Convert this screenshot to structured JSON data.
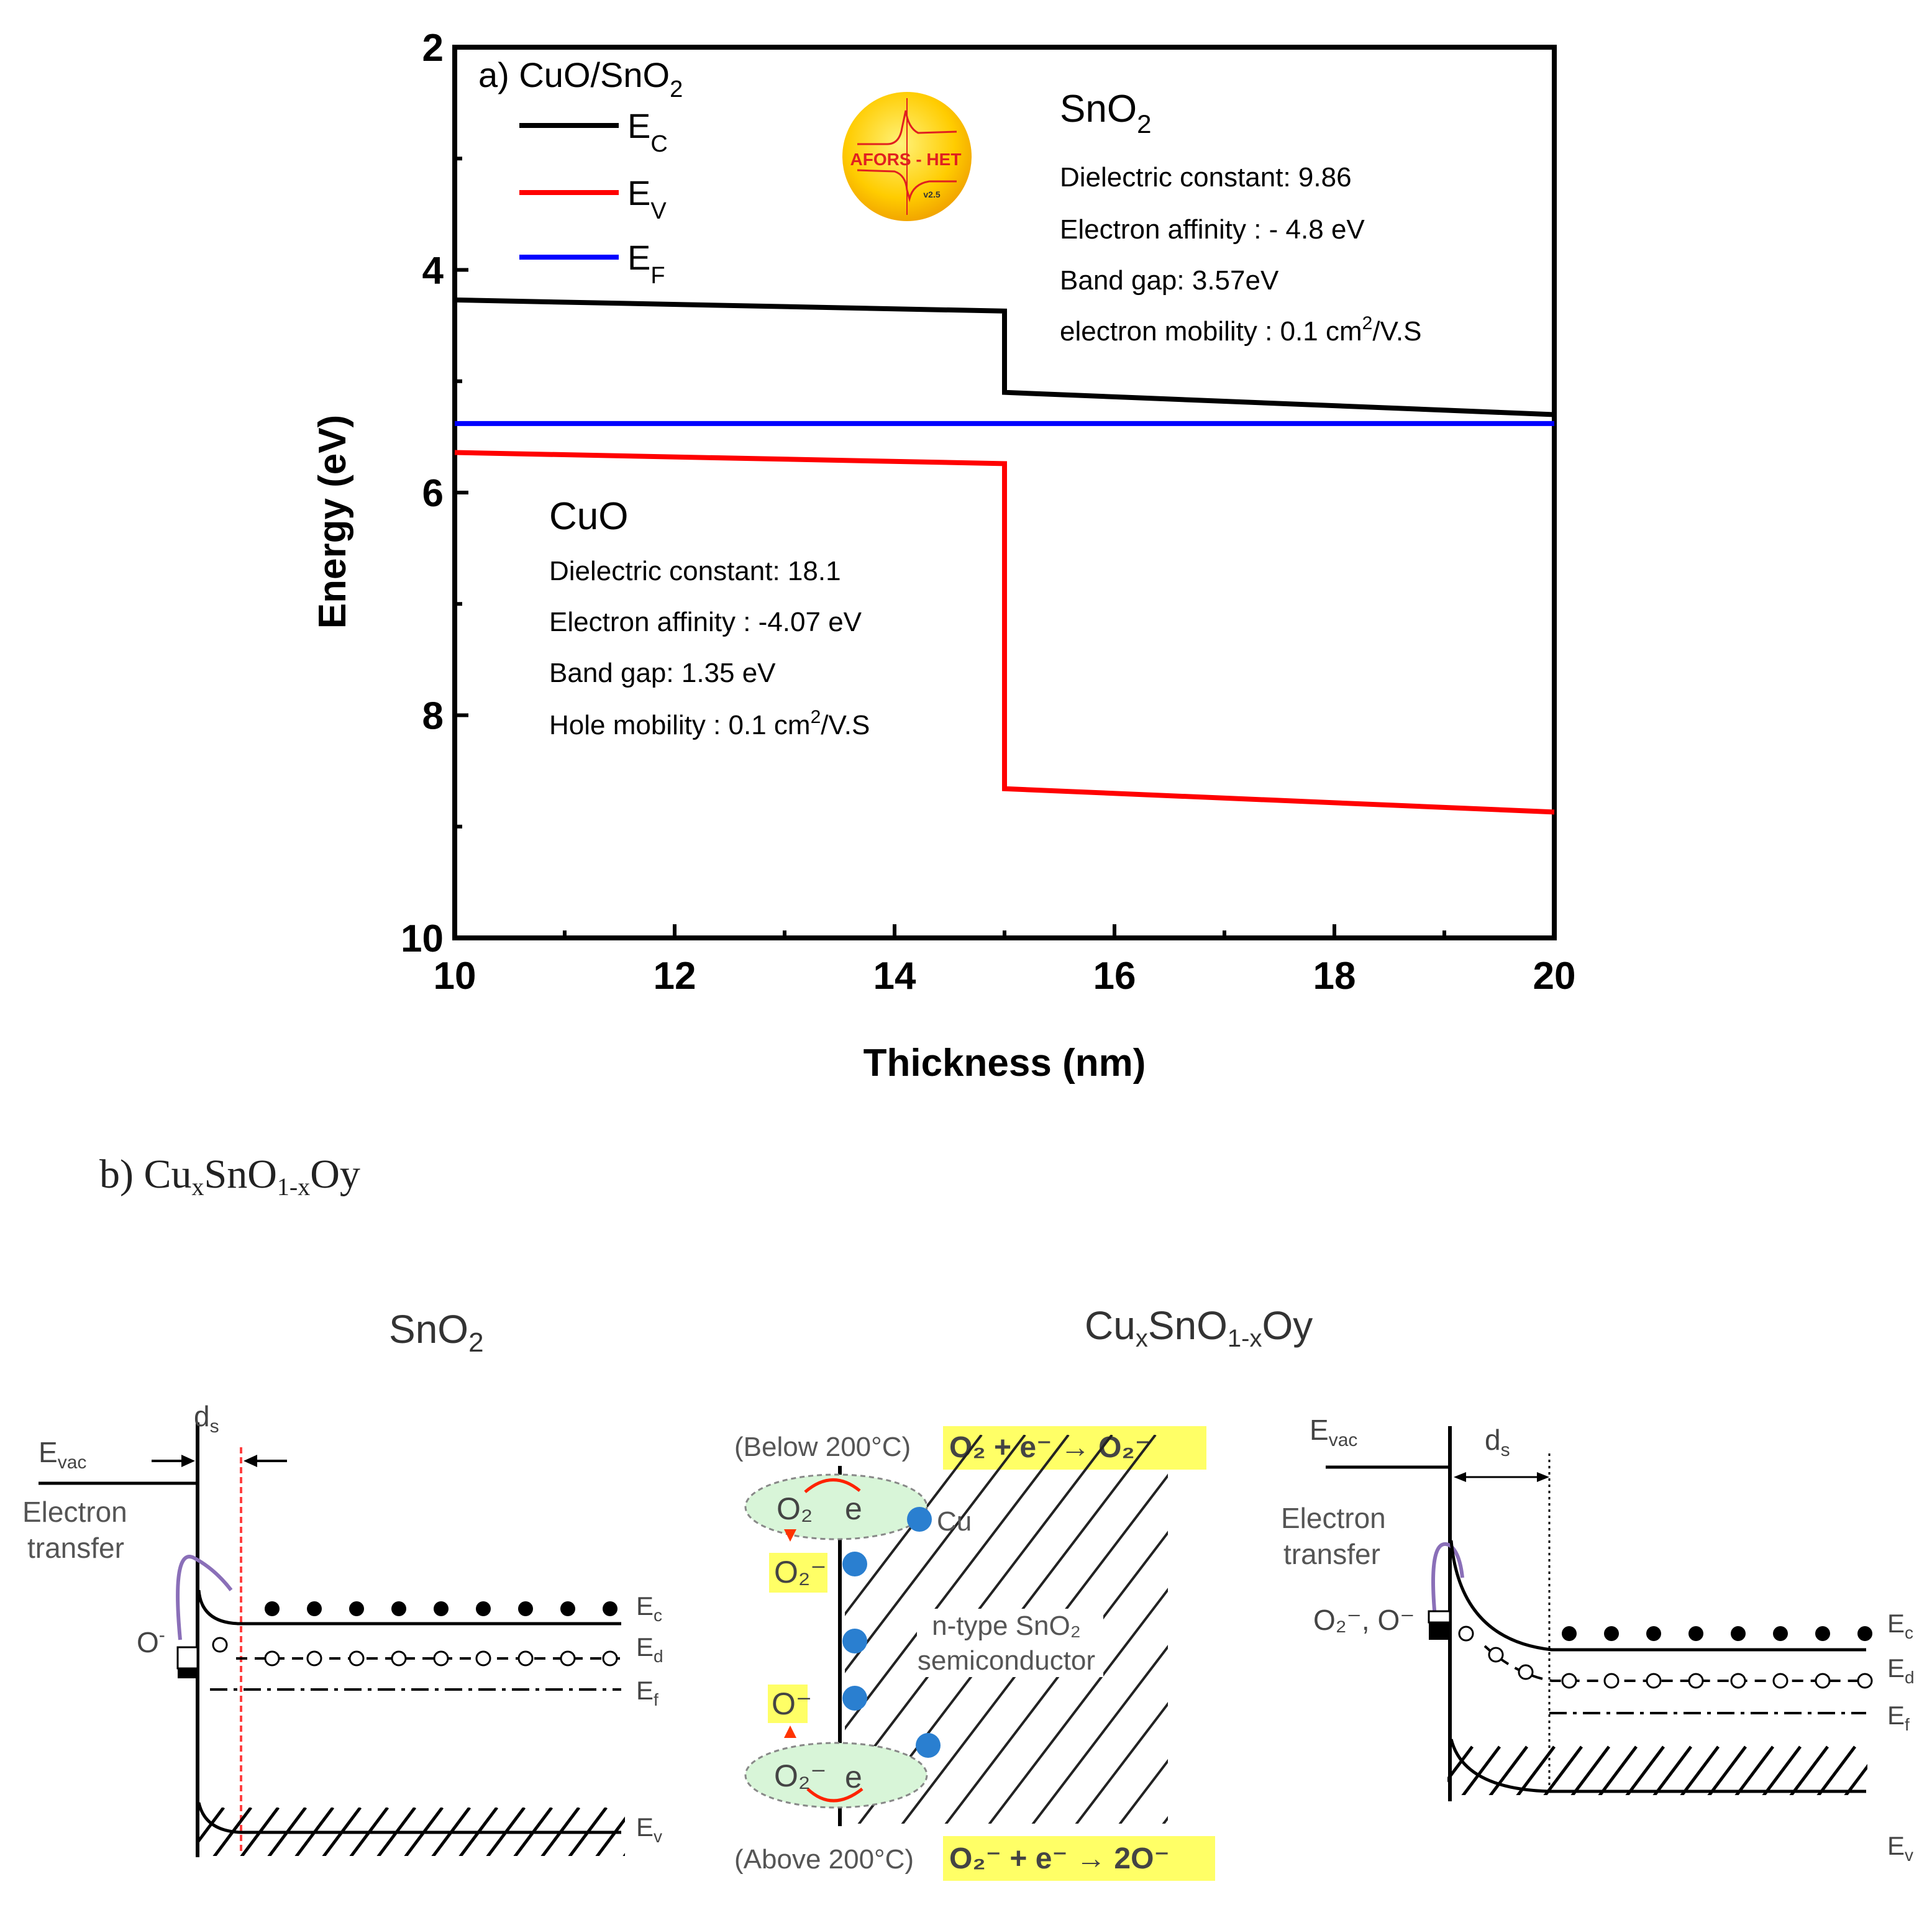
{
  "chart_data": {
    "type": "line",
    "panel_label": "a) CuO/SnO",
    "panel_label_sub": "2",
    "xlabel": "Thickness (nm)",
    "ylabel": "Energy (eV)",
    "xlim": [
      10,
      20
    ],
    "ylim": [
      2,
      10
    ],
    "y_inverted": true,
    "x_ticks": [
      "10",
      "12",
      "14",
      "16",
      "18",
      "20"
    ],
    "x_tick_values": [
      10,
      12,
      14,
      16,
      18,
      20
    ],
    "y_ticks": [
      "2",
      "4",
      "6",
      "8",
      "10"
    ],
    "y_tick_values": [
      2,
      4,
      6,
      8,
      10
    ],
    "legend_position": "top-left",
    "series": [
      {
        "name": "E",
        "sub": "C",
        "color": "#000000",
        "points": [
          [
            10,
            4.27
          ],
          [
            15,
            4.37
          ],
          [
            15,
            5.1
          ],
          [
            20,
            5.3
          ]
        ]
      },
      {
        "name": "E",
        "sub": "V",
        "color": "#ff0000",
        "points": [
          [
            10,
            5.64
          ],
          [
            15,
            5.74
          ],
          [
            15,
            8.66
          ],
          [
            20,
            8.87
          ]
        ]
      },
      {
        "name": "E",
        "sub": "F",
        "color": "#0000ff",
        "points": [
          [
            10,
            5.38
          ],
          [
            20,
            5.38
          ]
        ]
      }
    ],
    "annotations": {
      "logo_text": "AFORS - HET",
      "logo_version": "v2.5",
      "sno2": {
        "title": "SnO",
        "title_sub": "2",
        "dielectric": "Dielectric constant: 9.86",
        "affinity": "Electron affinity : - 4.8 eV",
        "band_gap": "Band gap: 3.57eV",
        "mobility_pre": "electron mobility : 0.1 cm",
        "mobility_sup": "2",
        "mobility_post": "/V.S"
      },
      "cuo": {
        "title": "CuO",
        "dielectric": "Dielectric constant: 18.1",
        "affinity": "Electron affinity : -4.07 eV",
        "band_gap": "Band gap: 1.35 eV",
        "mobility_pre": "Hole mobility : 0.1 cm",
        "mobility_sup": "2",
        "mobility_post": "/V.S"
      }
    }
  },
  "panel_b": {
    "label_pre": "b) Cu",
    "label_x": "x",
    "label_mid": "SnO",
    "label_sub": "1-x",
    "label_post": "Oy",
    "left_title": "SnO",
    "left_title_sub": "2",
    "right_title_pre": "Cu",
    "right_title_x": "x",
    "right_title_mid": "SnO",
    "right_title_sub": "1-x",
    "right_title_post": "Oy",
    "left": {
      "evac": "E",
      "evac_sub": "vac",
      "ds": "d",
      "ds_sub": "s",
      "electron": "Electron",
      "transfer": "transfer",
      "o_minus": "O",
      "o_minus_sup": "-",
      "ec": "E",
      "ec_sub": "c",
      "ed": "E",
      "ed_sub": "d",
      "ef": "E",
      "ef_sub": "f",
      "ev": "E",
      "ev_sub": "v"
    },
    "middle": {
      "below": "(Below 200°C)",
      "below_eq": "O₂ + e⁻ → O₂⁻",
      "above": "(Above 200°C)",
      "above_eq": "O₂⁻ + e⁻ → 2O⁻",
      "o2": "O₂",
      "e": "e",
      "cu": "Cu",
      "o2_minus": "O₂⁻",
      "o_minus": "O⁻",
      "sc_line1": "n-type SnO₂",
      "sc_line2": "semiconductor"
    },
    "right": {
      "evac": "E",
      "evac_sub": "vac",
      "ds": "d",
      "ds_sub": "s",
      "electron": "Electron",
      "transfer": "transfer",
      "species": "O₂⁻, O⁻",
      "ec": "E",
      "ec_sub": "c",
      "ed": "E",
      "ed_sub": "d",
      "ef": "E",
      "ef_sub": "f",
      "ev": "E",
      "ev_sub": "v"
    }
  }
}
